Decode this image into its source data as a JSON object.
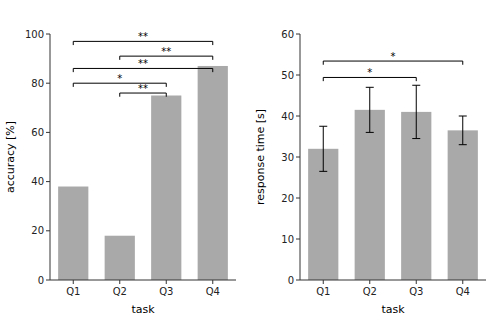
{
  "chart_data": [
    {
      "type": "bar",
      "categories": [
        "Q1",
        "Q2",
        "Q3",
        "Q4"
      ],
      "values": [
        38,
        18,
        75,
        87
      ],
      "color": "#a9a9a9",
      "xlabel": "task",
      "ylabel": "accuracy [%]",
      "ylim": [
        0,
        100
      ],
      "yticks": [
        0,
        20,
        40,
        60,
        80,
        100
      ],
      "annotations": [
        {
          "x1": "Q1",
          "x2": "Q3",
          "y": 78.5,
          "label": "*"
        },
        {
          "x1": "Q2",
          "x2": "Q3",
          "y": 74.5,
          "label": "**"
        },
        {
          "x1": "Q1",
          "x2": "Q4",
          "y": 84.5,
          "label": "**"
        },
        {
          "x1": "Q2",
          "x2": "Q4",
          "y": 89.5,
          "label": "**"
        },
        {
          "x1": "Q1",
          "x2": "Q4",
          "y": 95.5,
          "label": "**"
        }
      ]
    },
    {
      "type": "bar",
      "categories": [
        "Q1",
        "Q2",
        "Q3",
        "Q4"
      ],
      "values": [
        32,
        41.5,
        41,
        36.5
      ],
      "errors": [
        5.5,
        5.5,
        6.5,
        3.5
      ],
      "color": "#a9a9a9",
      "xlabel": "task",
      "ylabel": "response time [s]",
      "ylim": [
        0,
        60
      ],
      "yticks": [
        0,
        10,
        20,
        30,
        40,
        50,
        60
      ],
      "annotations": [
        {
          "x1": "Q1",
          "x2": "Q3",
          "y": 48.5,
          "label": "*"
        },
        {
          "x1": "Q1",
          "x2": "Q4",
          "y": 52.5,
          "label": "*"
        }
      ]
    }
  ]
}
